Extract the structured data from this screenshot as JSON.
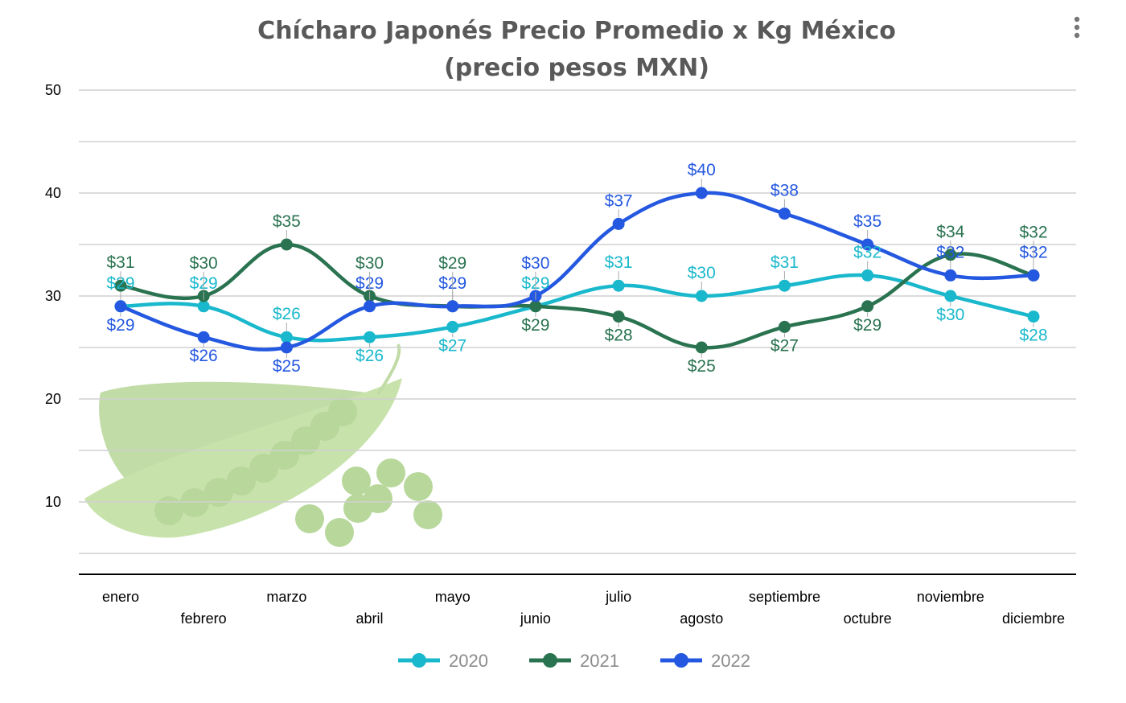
{
  "chart_data": {
    "type": "line",
    "title": "Chícharo Japonés Precio Promedio x Kg México\n(precio pesos MXN)",
    "title_lines": [
      "Chícharo Japonés Precio Promedio x Kg México",
      "(precio pesos MXN)"
    ],
    "xlabel": "",
    "ylabel": "",
    "categories": [
      "enero",
      "febrero",
      "marzo",
      "abril",
      "mayo",
      "junio",
      "julio",
      "agosto",
      "septiembre",
      "octubre",
      "noviembre",
      "diciembre"
    ],
    "ylim": [
      3,
      50
    ],
    "yticks": [
      10,
      20,
      30,
      40,
      50
    ],
    "grid": true,
    "legend": "bottom",
    "data_label_prefix": "$",
    "series": [
      {
        "name": "2020",
        "color": "#1ab8cc",
        "values": [
          29,
          29,
          26,
          26,
          27,
          29,
          31,
          30,
          31,
          32,
          30,
          28
        ]
      },
      {
        "name": "2021",
        "color": "#2a7350",
        "values": [
          31,
          30,
          35,
          30,
          29,
          29,
          28,
          25,
          27,
          29,
          34,
          32
        ]
      },
      {
        "name": "2022",
        "color": "#2458e0",
        "values": [
          29,
          26,
          25,
          29,
          29,
          30,
          37,
          40,
          38,
          35,
          32,
          32
        ]
      }
    ]
  },
  "menu_icon": "more-vertical-icon",
  "background_image": "green-peas-pod"
}
